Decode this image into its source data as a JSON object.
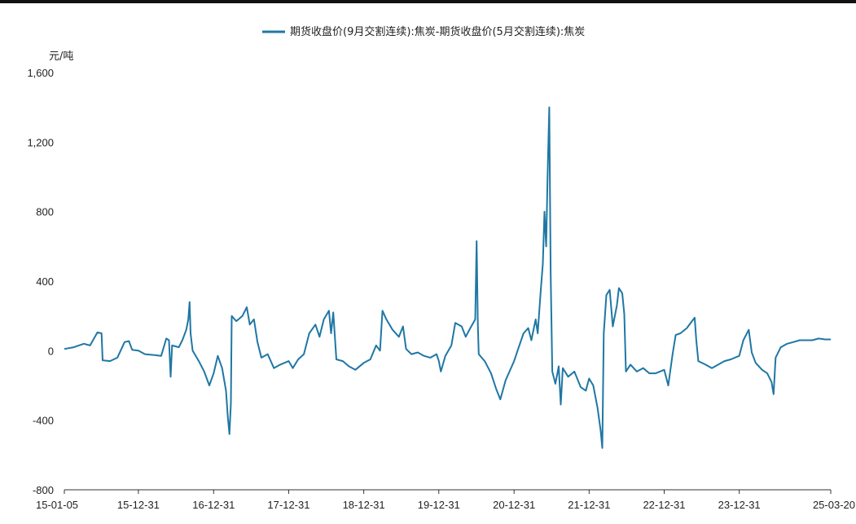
{
  "chart_data": {
    "type": "line",
    "title": "",
    "ylabel": "元/吨",
    "xlabel": "",
    "ylim": [
      -800,
      1600
    ],
    "y_ticks": [
      -800,
      -400,
      0,
      400,
      800,
      1200,
      1600
    ],
    "y_tick_labels": [
      "-800",
      "-400",
      "0",
      "400",
      "800",
      "1,200",
      "1,600"
    ],
    "x_range": [
      "2015-01-05",
      "2025-03-20"
    ],
    "x_ticks": [
      "2015-01-05",
      "2015-12-31",
      "2016-12-31",
      "2017-12-31",
      "2018-12-31",
      "2019-12-31",
      "2020-12-31",
      "2021-12-31",
      "2022-12-31",
      "2023-12-31",
      "2025-03-20"
    ],
    "x_tick_labels": [
      "15-01-05",
      "15-12-31",
      "16-12-31",
      "17-12-31",
      "18-12-31",
      "19-12-31",
      "20-12-31",
      "21-12-31",
      "22-12-31",
      "23-12-31",
      "25-03-20"
    ],
    "grid": false,
    "legend_position": "top-center",
    "series": [
      {
        "name": "期货收盘价(9月交割连续):焦炭-期货收盘价(5月交割连续):焦炭",
        "color": "#1f77a4",
        "points": [
          [
            "2015-01-05",
            10
          ],
          [
            "2015-02-20",
            20
          ],
          [
            "2015-04-10",
            40
          ],
          [
            "2015-05-10",
            30
          ],
          [
            "2015-06-15",
            105
          ],
          [
            "2015-07-05",
            100
          ],
          [
            "2015-07-10",
            -55
          ],
          [
            "2015-08-15",
            -60
          ],
          [
            "2015-09-20",
            -40
          ],
          [
            "2015-10-25",
            50
          ],
          [
            "2015-11-15",
            55
          ],
          [
            "2015-12-01",
            5
          ],
          [
            "2015-12-31",
            0
          ],
          [
            "2016-02-01",
            -20
          ],
          [
            "2016-03-20",
            -25
          ],
          [
            "2016-04-20",
            -30
          ],
          [
            "2016-05-15",
            70
          ],
          [
            "2016-05-28",
            60
          ],
          [
            "2016-06-05",
            -150
          ],
          [
            "2016-06-12",
            30
          ],
          [
            "2016-07-15",
            20
          ],
          [
            "2016-08-01",
            60
          ],
          [
            "2016-08-20",
            120
          ],
          [
            "2016-08-30",
            180
          ],
          [
            "2016-09-05",
            280
          ],
          [
            "2016-09-10",
            100
          ],
          [
            "2016-09-20",
            0
          ],
          [
            "2016-10-20",
            -60
          ],
          [
            "2016-11-15",
            -120
          ],
          [
            "2016-12-10",
            -200
          ],
          [
            "2016-12-31",
            -130
          ],
          [
            "2017-01-20",
            -30
          ],
          [
            "2017-02-10",
            -100
          ],
          [
            "2017-03-01",
            -230
          ],
          [
            "2017-03-10",
            -380
          ],
          [
            "2017-03-18",
            -480
          ],
          [
            "2017-03-25",
            -300
          ],
          [
            "2017-03-29",
            200
          ],
          [
            "2017-04-20",
            170
          ],
          [
            "2017-05-20",
            200
          ],
          [
            "2017-06-10",
            250
          ],
          [
            "2017-06-25",
            150
          ],
          [
            "2017-07-15",
            180
          ],
          [
            "2017-08-01",
            50
          ],
          [
            "2017-08-20",
            -40
          ],
          [
            "2017-09-20",
            -20
          ],
          [
            "2017-10-20",
            -100
          ],
          [
            "2017-11-20",
            -80
          ],
          [
            "2017-12-31",
            -60
          ],
          [
            "2018-01-20",
            -100
          ],
          [
            "2018-02-15",
            -50
          ],
          [
            "2018-03-15",
            -20
          ],
          [
            "2018-04-10",
            100
          ],
          [
            "2018-05-10",
            150
          ],
          [
            "2018-05-30",
            80
          ],
          [
            "2018-06-20",
            180
          ],
          [
            "2018-07-15",
            230
          ],
          [
            "2018-07-25",
            100
          ],
          [
            "2018-08-05",
            220
          ],
          [
            "2018-08-20",
            -50
          ],
          [
            "2018-09-20",
            -60
          ],
          [
            "2018-10-20",
            -90
          ],
          [
            "2018-11-20",
            -110
          ],
          [
            "2018-12-31",
            -70
          ],
          [
            "2019-02-01",
            -50
          ],
          [
            "2019-03-01",
            30
          ],
          [
            "2019-03-20",
            0
          ],
          [
            "2019-04-01",
            230
          ],
          [
            "2019-04-20",
            180
          ],
          [
            "2019-05-20",
            120
          ],
          [
            "2019-06-20",
            80
          ],
          [
            "2019-07-10",
            140
          ],
          [
            "2019-07-25",
            10
          ],
          [
            "2019-08-20",
            -20
          ],
          [
            "2019-09-20",
            -10
          ],
          [
            "2019-10-20",
            -30
          ],
          [
            "2019-11-20",
            -40
          ],
          [
            "2019-12-20",
            -20
          ],
          [
            "2019-12-31",
            -60
          ],
          [
            "2020-01-10",
            -120
          ],
          [
            "2020-02-01",
            -30
          ],
          [
            "2020-03-01",
            30
          ],
          [
            "2020-03-20",
            160
          ],
          [
            "2020-04-20",
            140
          ],
          [
            "2020-05-10",
            80
          ],
          [
            "2020-06-01",
            130
          ],
          [
            "2020-06-25",
            180
          ],
          [
            "2020-07-02",
            630
          ],
          [
            "2020-07-08",
            150
          ],
          [
            "2020-07-12",
            -20
          ],
          [
            "2020-08-10",
            -60
          ],
          [
            "2020-09-10",
            -130
          ],
          [
            "2020-10-05",
            -220
          ],
          [
            "2020-10-25",
            -280
          ],
          [
            "2020-11-20",
            -170
          ],
          [
            "2020-12-31",
            -60
          ],
          [
            "2021-01-20",
            10
          ],
          [
            "2021-02-15",
            100
          ],
          [
            "2021-03-10",
            130
          ],
          [
            "2021-03-25",
            60
          ],
          [
            "2021-04-15",
            180
          ],
          [
            "2021-04-25",
            100
          ],
          [
            "2021-05-10",
            350
          ],
          [
            "2021-05-20",
            500
          ],
          [
            "2021-05-28",
            800
          ],
          [
            "2021-06-05",
            600
          ],
          [
            "2021-06-12",
            1000
          ],
          [
            "2021-06-20",
            1400
          ],
          [
            "2021-06-27",
            450
          ],
          [
            "2021-07-05",
            -120
          ],
          [
            "2021-07-20",
            -190
          ],
          [
            "2021-08-05",
            -90
          ],
          [
            "2021-08-15",
            -310
          ],
          [
            "2021-08-25",
            -100
          ],
          [
            "2021-09-20",
            -150
          ],
          [
            "2021-10-20",
            -120
          ],
          [
            "2021-11-20",
            -210
          ],
          [
            "2021-12-15",
            -230
          ],
          [
            "2021-12-31",
            -160
          ],
          [
            "2022-01-20",
            -200
          ],
          [
            "2022-02-10",
            -330
          ],
          [
            "2022-02-25",
            -460
          ],
          [
            "2022-03-05",
            -560
          ],
          [
            "2022-03-12",
            100
          ],
          [
            "2022-03-25",
            320
          ],
          [
            "2022-04-10",
            350
          ],
          [
            "2022-04-25",
            140
          ],
          [
            "2022-05-15",
            260
          ],
          [
            "2022-05-25",
            360
          ],
          [
            "2022-06-10",
            330
          ],
          [
            "2022-06-20",
            210
          ],
          [
            "2022-06-28",
            -120
          ],
          [
            "2022-07-20",
            -80
          ],
          [
            "2022-08-20",
            -120
          ],
          [
            "2022-09-20",
            -100
          ],
          [
            "2022-10-20",
            -130
          ],
          [
            "2022-11-20",
            -130
          ],
          [
            "2022-12-31",
            -110
          ],
          [
            "2023-01-20",
            -200
          ],
          [
            "2023-02-10",
            -20
          ],
          [
            "2023-02-25",
            90
          ],
          [
            "2023-03-20",
            100
          ],
          [
            "2023-04-20",
            130
          ],
          [
            "2023-05-15",
            170
          ],
          [
            "2023-05-28",
            190
          ],
          [
            "2023-06-05",
            60
          ],
          [
            "2023-06-15",
            -60
          ],
          [
            "2023-07-20",
            -80
          ],
          [
            "2023-08-20",
            -100
          ],
          [
            "2023-09-20",
            -80
          ],
          [
            "2023-10-20",
            -60
          ],
          [
            "2023-11-20",
            -50
          ],
          [
            "2023-12-31",
            -30
          ],
          [
            "2024-01-20",
            60
          ],
          [
            "2024-02-15",
            120
          ],
          [
            "2024-03-01",
            -10
          ],
          [
            "2024-03-20",
            -70
          ],
          [
            "2024-04-20",
            -110
          ],
          [
            "2024-05-15",
            -130
          ],
          [
            "2024-06-05",
            -180
          ],
          [
            "2024-06-15",
            -250
          ],
          [
            "2024-06-25",
            -40
          ],
          [
            "2024-07-20",
            20
          ],
          [
            "2024-08-20",
            40
          ],
          [
            "2024-09-20",
            50
          ],
          [
            "2024-10-20",
            60
          ],
          [
            "2024-11-20",
            60
          ],
          [
            "2024-12-20",
            60
          ],
          [
            "2025-01-20",
            70
          ],
          [
            "2025-02-20",
            65
          ],
          [
            "2025-03-20",
            65
          ]
        ]
      }
    ]
  }
}
